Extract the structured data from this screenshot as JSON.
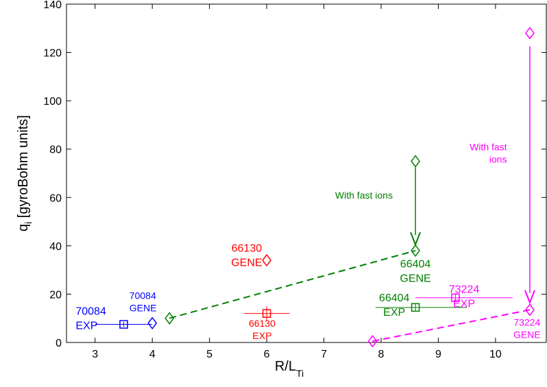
{
  "chart_data": {
    "type": "scatter",
    "xlabel_main": "R/L",
    "xlabel_sub": "Ti",
    "ylabel_main": "q",
    "ylabel_sub": "i",
    "ylabel_rest": " [gyroBohm units]",
    "xlim": [
      2.5,
      10.9
    ],
    "ylim": [
      0,
      140
    ],
    "xticks": [
      3,
      4,
      5,
      6,
      7,
      8,
      9,
      10
    ],
    "yticks": [
      0,
      20,
      40,
      60,
      80,
      100,
      120,
      140
    ],
    "grid": false,
    "legend": "none",
    "colors": {
      "blue": "#0000ff",
      "green": "#008000",
      "red": "#ff0000",
      "magenta": "#ff00ff",
      "axis": "#000000"
    },
    "points": [
      {
        "id": "exp-70084",
        "marker": "square",
        "color": "blue",
        "x": 3.5,
        "y": 7.5,
        "xerr": [
          3.0,
          4.0
        ],
        "yerr": [
          6.5,
          8.5
        ]
      },
      {
        "id": "gene-70084",
        "marker": "diamond",
        "color": "blue",
        "x": 4.0,
        "y": 8.0
      },
      {
        "id": "gene-4.3",
        "marker": "diamond",
        "color": "green",
        "x": 4.3,
        "y": 10.0
      },
      {
        "id": "exp-66130",
        "marker": "square",
        "color": "red",
        "x": 6.0,
        "y": 12.0,
        "xerr": [
          5.6,
          6.4
        ],
        "yerr": [
          9.0,
          15.0
        ]
      },
      {
        "id": "gene-66130",
        "marker": "diamond",
        "color": "red",
        "x": 6.0,
        "y": 34.0
      },
      {
        "id": "gene-66404-fast",
        "marker": "diamond",
        "color": "green",
        "x": 8.6,
        "y": 75.0
      },
      {
        "id": "gene-66404",
        "marker": "diamond",
        "color": "green",
        "x": 8.6,
        "y": 38.0
      },
      {
        "id": "exp-66404",
        "marker": "square",
        "color": "green",
        "x": 8.6,
        "y": 14.5,
        "xerr": [
          7.9,
          9.5
        ],
        "yerr": [
          13.0,
          16.0
        ]
      },
      {
        "id": "gene-7.85",
        "marker": "diamond",
        "color": "magenta",
        "x": 7.85,
        "y": 0.5
      },
      {
        "id": "exp-73224",
        "marker": "square",
        "color": "magenta",
        "x": 9.3,
        "y": 18.5,
        "xerr": [
          8.6,
          10.3
        ],
        "yerr": [
          17.0,
          20.0
        ]
      },
      {
        "id": "gene-73224",
        "marker": "diamond",
        "color": "magenta",
        "x": 10.6,
        "y": 13.5
      },
      {
        "id": "gene-73224-fast",
        "marker": "diamond",
        "color": "magenta",
        "x": 10.6,
        "y": 128.0
      }
    ],
    "dashed_lines": [
      {
        "id": "green-trend",
        "color": "green",
        "x": [
          4.3,
          8.6
        ],
        "y": [
          10.0,
          38.0
        ]
      },
      {
        "id": "magenta-trend",
        "color": "magenta",
        "x": [
          7.85,
          10.6
        ],
        "y": [
          0.5,
          13.5
        ]
      }
    ],
    "arrows": [
      {
        "id": "green-fast-arrow",
        "color": "green",
        "x": 8.6,
        "y_from": 72.5,
        "y_to": 40.5
      },
      {
        "id": "magenta-fast-arrow",
        "color": "magenta",
        "x": 10.6,
        "y_from": 122.5,
        "y_to": 16.5
      }
    ],
    "annotations": [
      {
        "id": "lbl-70084-exp",
        "color": "blue",
        "lines": [
          "70084",
          "EXP"
        ],
        "x": 2.66,
        "y": 11.5,
        "anchor": "start",
        "size": 16
      },
      {
        "id": "lbl-70084-gene",
        "color": "blue",
        "lines": [
          "70084",
          "GENE"
        ],
        "x": 3.6,
        "y": 18.0,
        "anchor": "start",
        "size": 14
      },
      {
        "id": "lbl-66130-gene",
        "color": "red",
        "lines": [
          "66130",
          "GENE"
        ],
        "x": 5.65,
        "y": 37.5,
        "anchor": "middle",
        "size": 16
      },
      {
        "id": "lbl-66130-exp",
        "color": "red",
        "lines": [
          "66130",
          "EXP"
        ],
        "x": 5.92,
        "y": 6.5,
        "anchor": "middle",
        "size": 14
      },
      {
        "id": "lbl-green-fast",
        "color": "green",
        "lines": [
          "With fast ions"
        ],
        "x": 7.7,
        "y": 59.5,
        "anchor": "middle",
        "size": 14
      },
      {
        "id": "lbl-66404-gene",
        "color": "green",
        "lines": [
          "66404",
          "GENE"
        ],
        "x": 8.6,
        "y": 31.0,
        "anchor": "middle",
        "size": 16
      },
      {
        "id": "lbl-66404-exp",
        "color": "green",
        "lines": [
          "66404",
          "EXP"
        ],
        "x": 8.23,
        "y": 17.0,
        "anchor": "middle",
        "size": 16
      },
      {
        "id": "lbl-73224-exp",
        "color": "magenta",
        "lines": [
          "73224",
          "EXP"
        ],
        "x": 9.45,
        "y": 20.5,
        "anchor": "middle",
        "size": 16
      },
      {
        "id": "lbl-73224-gene",
        "color": "magenta",
        "lines": [
          "73224",
          "GENE"
        ],
        "x": 10.55,
        "y": 7.0,
        "anchor": "middle",
        "size": 14
      },
      {
        "id": "lbl-magenta-fast",
        "color": "magenta",
        "lines": [
          "With fast",
          "ions"
        ],
        "x": 10.2,
        "y": 79.5,
        "anchor": "end",
        "size": 14
      }
    ]
  }
}
